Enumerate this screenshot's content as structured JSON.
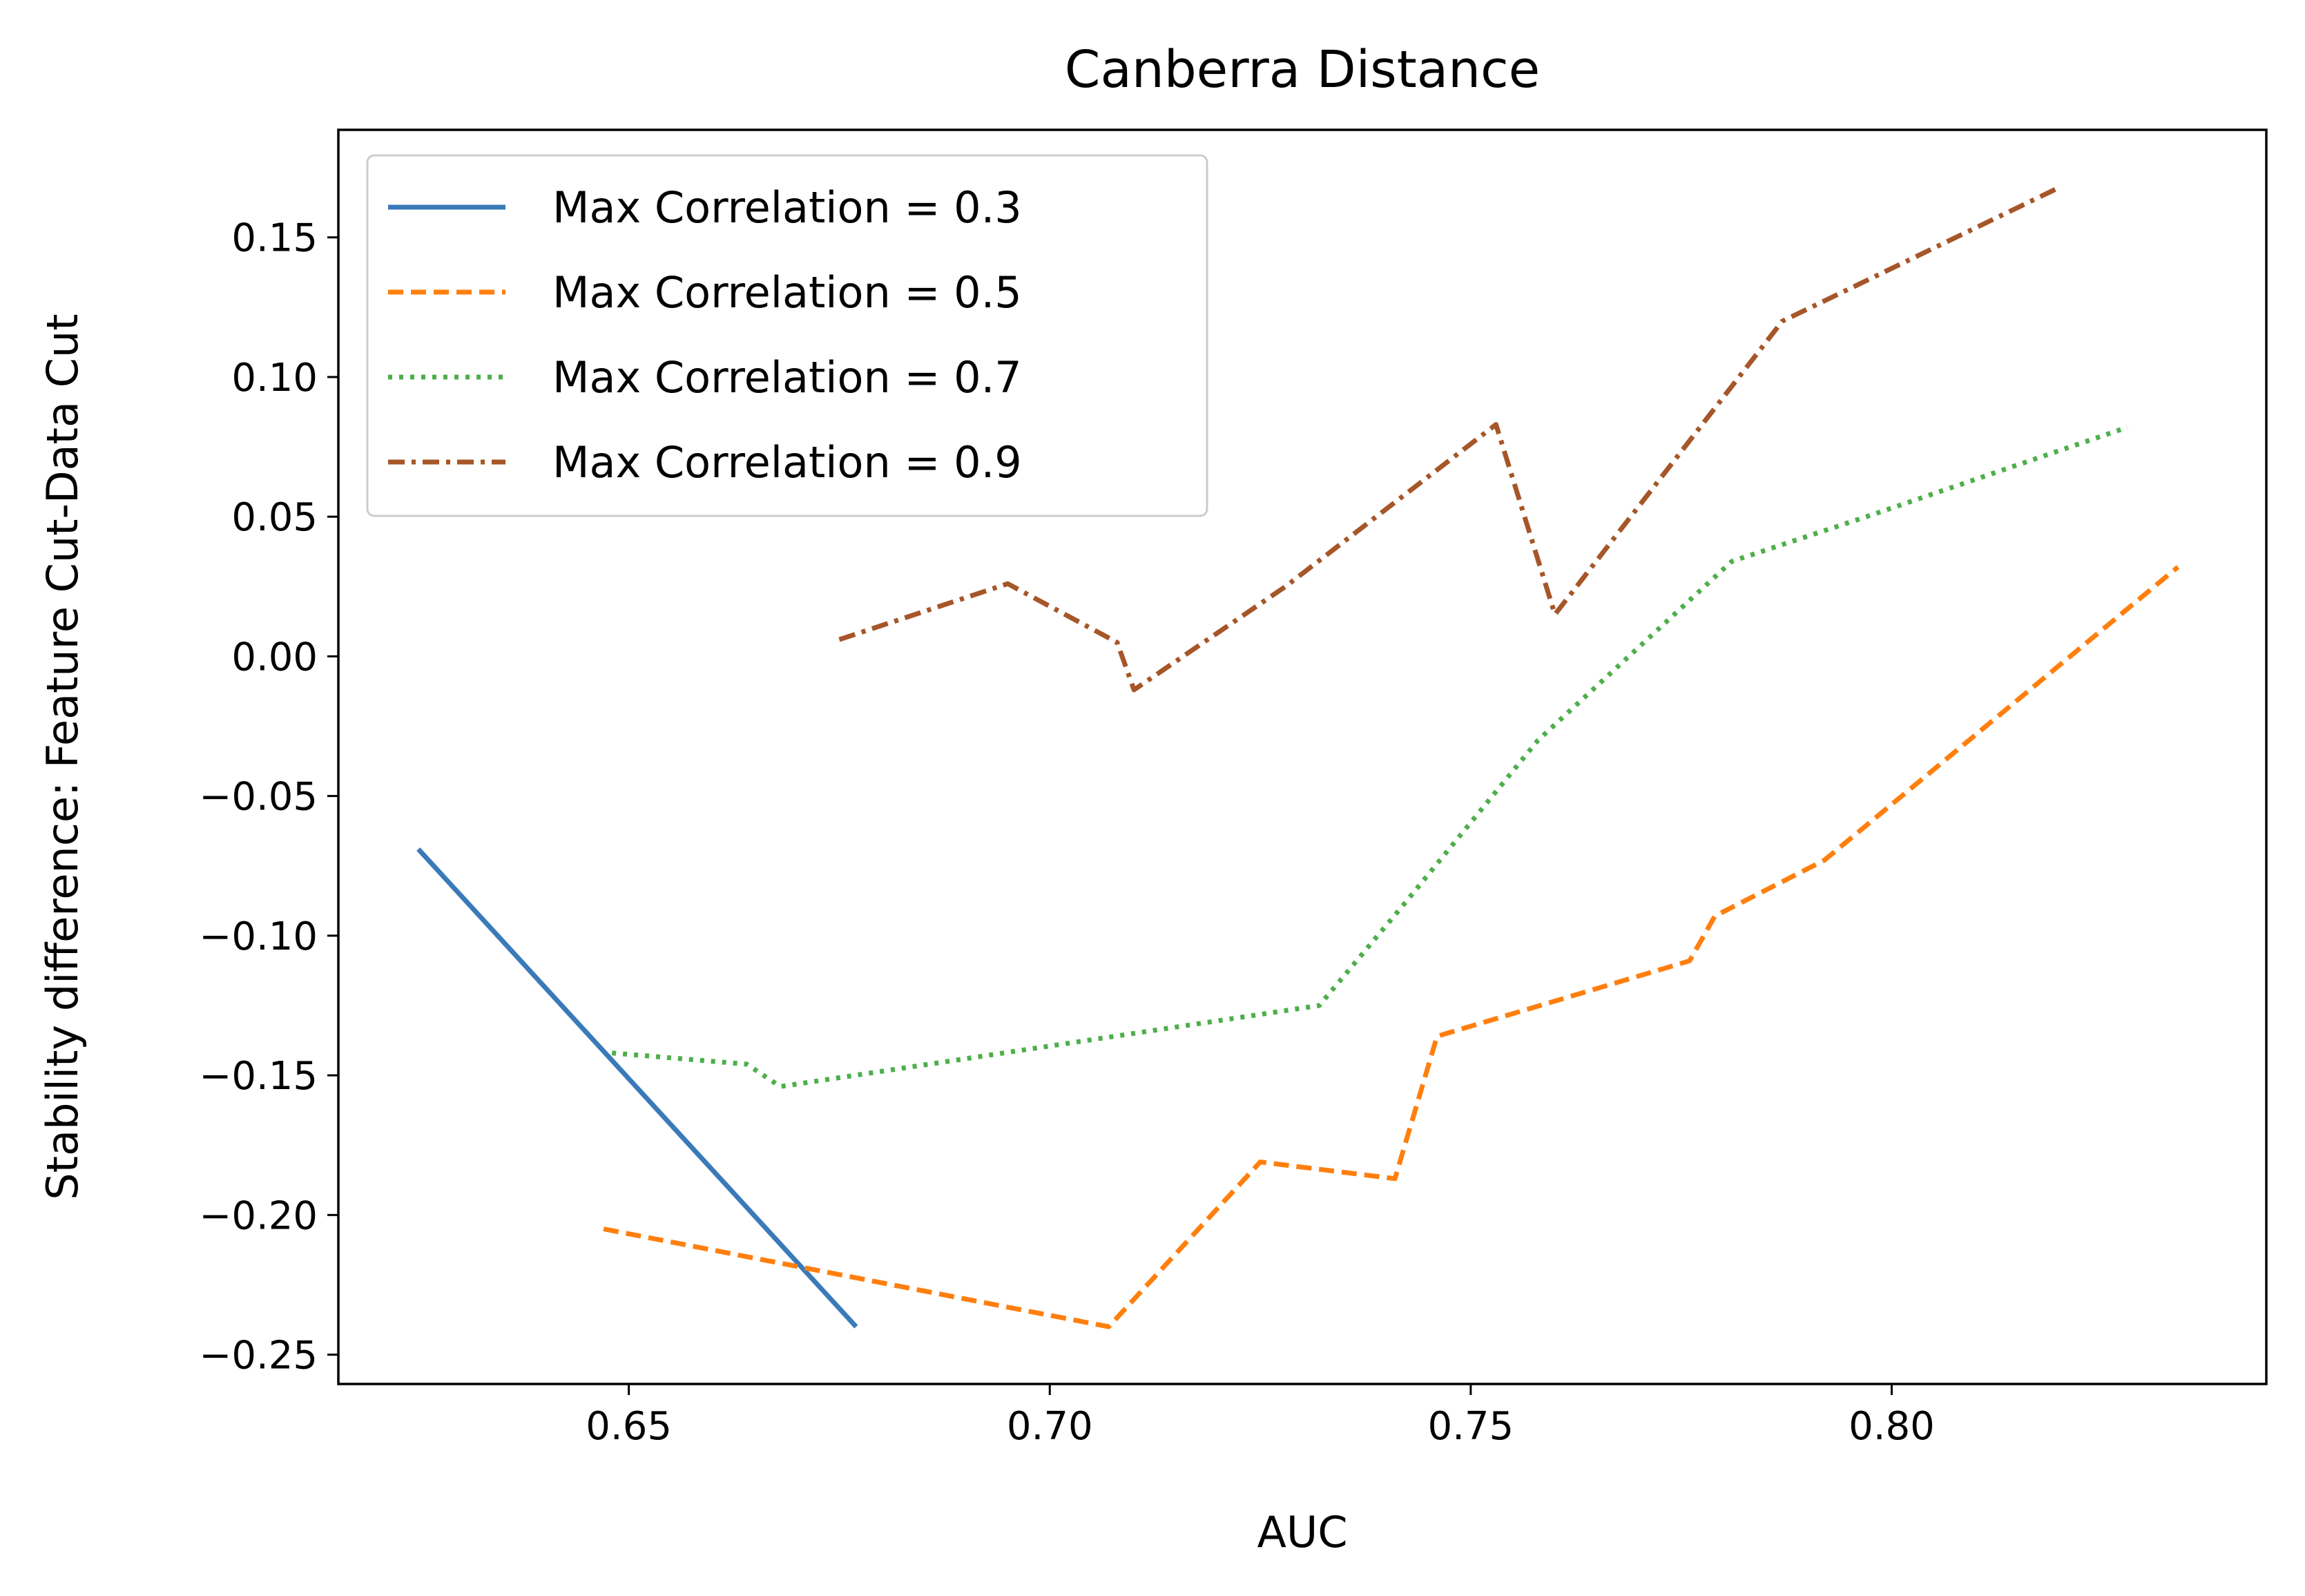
{
  "chart_data": {
    "type": "line",
    "title": "Canberra Distance",
    "xlabel": "AUC",
    "ylabel": "Stability difference: Feature Cut-Data Cut",
    "xlim": [
      0.6155,
      0.8445
    ],
    "ylim": [
      -0.2605,
      0.1885
    ],
    "x_ticks": [
      0.65,
      0.7,
      0.75,
      0.8
    ],
    "x_tick_labels": [
      "0.65",
      "0.70",
      "0.75",
      "0.80"
    ],
    "y_ticks": [
      0.15,
      0.1,
      0.05,
      0.0,
      -0.05,
      -0.1,
      -0.15,
      -0.2,
      -0.25
    ],
    "y_tick_labels": [
      "0.15",
      "0.10",
      "0.05",
      "0.00",
      "−0.05",
      "−0.10",
      "−0.15",
      "−0.20",
      "−0.25"
    ],
    "grid": false,
    "legend_position": "top-left",
    "series": [
      {
        "name": "Max Correlation = 0.3",
        "color": "#3a7ab8",
        "dash": "solid",
        "points": [
          [
            0.625,
            -0.069
          ],
          [
            0.677,
            -0.24
          ]
        ]
      },
      {
        "name": "Max Correlation = 0.5",
        "color": "#ff7f0e",
        "dash": "dashed",
        "points": [
          [
            0.647,
            -0.205
          ],
          [
            0.707,
            -0.24
          ],
          [
            0.725,
            -0.181
          ],
          [
            0.741,
            -0.187
          ],
          [
            0.746,
            -0.136
          ],
          [
            0.776,
            -0.109
          ],
          [
            0.779,
            -0.093
          ],
          [
            0.792,
            -0.073
          ],
          [
            0.834,
            0.032
          ]
        ]
      },
      {
        "name": "Max Correlation = 0.7",
        "color": "#4daf4a",
        "dash": "dotted",
        "points": [
          [
            0.648,
            -0.142
          ],
          [
            0.664,
            -0.146
          ],
          [
            0.668,
            -0.154
          ],
          [
            0.732,
            -0.125
          ],
          [
            0.742,
            -0.089
          ],
          [
            0.758,
            -0.03
          ],
          [
            0.781,
            0.034
          ],
          [
            0.797,
            0.05
          ],
          [
            0.828,
            0.082
          ]
        ]
      },
      {
        "name": "Max Correlation = 0.9",
        "color": "#a65628",
        "dash": "dashdot",
        "points": [
          [
            0.675,
            0.006
          ],
          [
            0.695,
            0.026
          ],
          [
            0.708,
            0.005
          ],
          [
            0.71,
            -0.012
          ],
          [
            0.728,
            0.025
          ],
          [
            0.753,
            0.083
          ],
          [
            0.76,
            0.015
          ],
          [
            0.787,
            0.12
          ],
          [
            0.82,
            0.168
          ]
        ]
      }
    ]
  }
}
